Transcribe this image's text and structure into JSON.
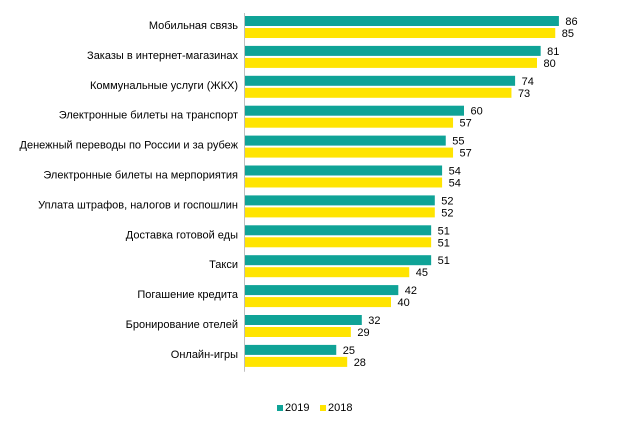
{
  "chart_data": {
    "type": "bar",
    "orientation": "horizontal",
    "categories": [
      "Мобильная связь",
      "Заказы в интернет-магазинах",
      "Коммунальные услуги (ЖКХ)",
      "Электронные билеты на транспорт",
      "Денежный переводы по России и за рубеж",
      "Электронные билеты на мерпориятия",
      "Уплата штрафов, налогов и госпошлин",
      "Доставка готовой еды",
      "Такси",
      "Погашение  кредита",
      "Бронирование отелей",
      "Онлайн-игры"
    ],
    "series": [
      {
        "name": "2019",
        "color": "#0fa397",
        "values": [
          86,
          81,
          74,
          60,
          55,
          54,
          52,
          51,
          51,
          42,
          32,
          25
        ]
      },
      {
        "name": "2018",
        "color": "#ffe400",
        "values": [
          85,
          80,
          73,
          57,
          57,
          54,
          52,
          51,
          45,
          40,
          29,
          28
        ]
      }
    ],
    "xlim": [
      0,
      90
    ],
    "grid": false,
    "legend_position": "bottom-center",
    "data_labels": true
  }
}
